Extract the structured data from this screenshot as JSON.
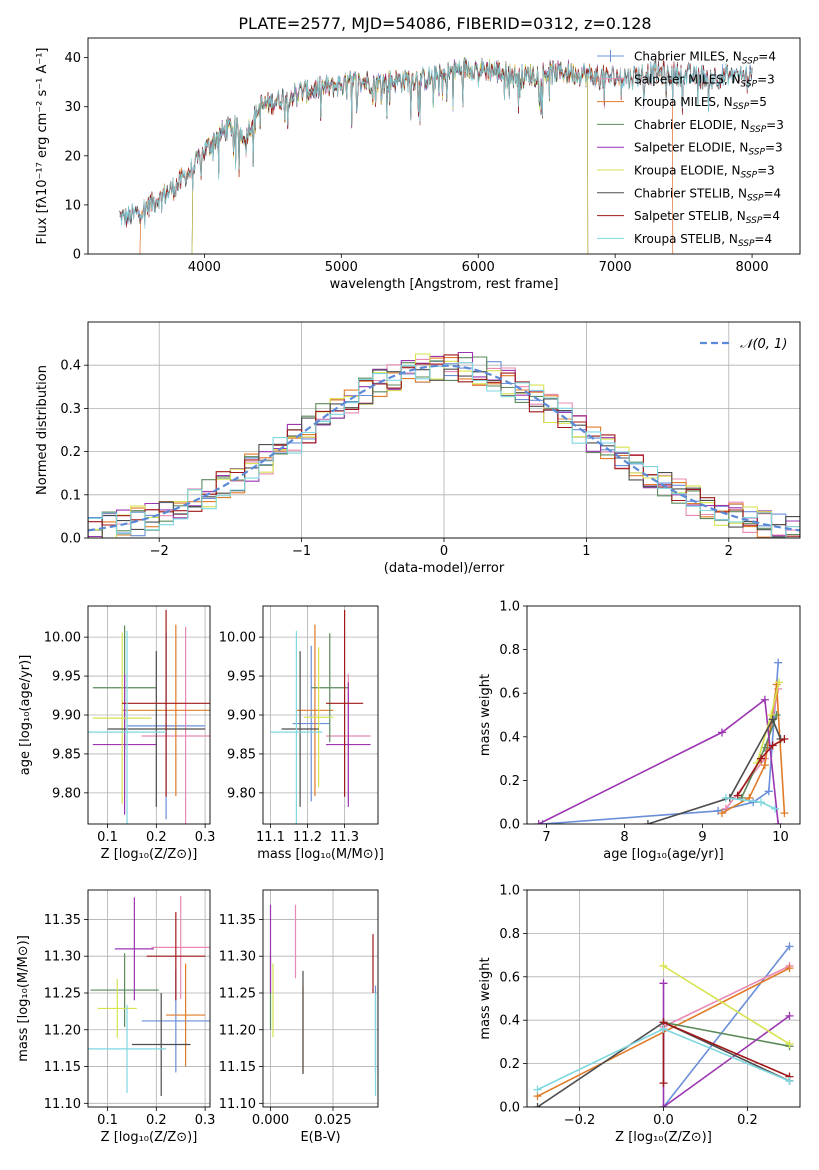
{
  "figure_title": "PLATE=2577, MJD=54086, FIBERID=0312, z=0.128",
  "colors": {
    "chabrier_miles": "#6a8fd8",
    "salpeter_miles": "#e889b3",
    "kroupa_miles": "#e07b28",
    "chabrier_elodie": "#5b8a5b",
    "salpeter_elodie": "#9b35b0",
    "kroupa_elodie": "#d6e34e",
    "chabrier_stelib": "#4d4d4d",
    "salpeter_stelib": "#a01818",
    "kroupa_stelib": "#7fd7e0",
    "gaussian": "#5b8ad8"
  },
  "chart_data": [
    {
      "id": "spectrum",
      "type": "line",
      "xlabel": "wavelength [Angstrom, rest frame]",
      "ylabel": "Flux [fλ10⁻¹⁷ erg cm⁻² s⁻¹ A⁻¹]",
      "xlim": [
        3150,
        8350
      ],
      "ylim": [
        0,
        44
      ],
      "xticks": [
        4000,
        5000,
        6000,
        7000,
        8000
      ],
      "yticks": [
        0,
        10,
        20,
        30,
        40
      ],
      "continuum": {
        "x": [
          3380,
          3450,
          3600,
          3700,
          3800,
          3900,
          4000,
          4100,
          4200,
          4300,
          4400,
          4500,
          4700,
          4900,
          5100,
          5300,
          5500,
          5700,
          5900,
          6100,
          6300,
          6500,
          6700,
          6900,
          7100,
          7300,
          7500,
          7700,
          7900,
          8000
        ],
        "y": [
          7.5,
          7.5,
          10,
          12,
          14,
          17,
          21,
          24,
          26,
          24,
          30,
          31,
          33,
          34,
          35,
          35,
          35.5,
          36,
          38,
          37.5,
          36,
          37,
          37,
          36,
          36,
          37,
          36.5,
          36,
          36.5,
          36
        ]
      },
      "cutoffs": [
        {
          "model": "salpeter_miles",
          "from": 3530,
          "to": 7420
        },
        {
          "model": "kroupa_miles",
          "from": 3530,
          "to": 7420
        },
        {
          "model": "kroupa_elodie",
          "from": 3910,
          "to": 6800
        },
        {
          "model": "chabrier_elodie",
          "from": 3910,
          "to": 6800
        },
        {
          "model": "salpeter_elodie",
          "from": 3910,
          "to": 6800
        }
      ],
      "legend_position": "upper right",
      "legend": [
        {
          "key": "chabrier_miles",
          "style": "plus",
          "label": "Chabrier MILES, N",
          "sub": "SSP",
          "eq": "=4"
        },
        {
          "key": "salpeter_miles",
          "style": "line",
          "label": "Salpeter MILES, N",
          "sub": "SSP",
          "eq": "=3"
        },
        {
          "key": "kroupa_miles",
          "style": "line",
          "label": "Kroupa MILES, N",
          "sub": "SSP",
          "eq": "=5"
        },
        {
          "key": "chabrier_elodie",
          "style": "line",
          "label": "Chabrier ELODIE, N",
          "sub": "SSP",
          "eq": "=3"
        },
        {
          "key": "salpeter_elodie",
          "style": "line",
          "label": "Salpeter ELODIE, N",
          "sub": "SSP",
          "eq": "=3"
        },
        {
          "key": "kroupa_elodie",
          "style": "line",
          "label": "Kroupa ELODIE, N",
          "sub": "SSP",
          "eq": "=3"
        },
        {
          "key": "chabrier_stelib",
          "style": "line",
          "label": "Chabrier STELIB, N",
          "sub": "SSP",
          "eq": "=4"
        },
        {
          "key": "salpeter_stelib",
          "style": "line",
          "label": "Salpeter STELIB, N",
          "sub": "SSP",
          "eq": "=4"
        },
        {
          "key": "kroupa_stelib",
          "style": "line",
          "label": "Kroupa STELIB, N",
          "sub": "SSP",
          "eq": "=4"
        }
      ]
    },
    {
      "id": "residuals",
      "type": "histogram",
      "xlabel": "(data-model)/error",
      "ylabel": "Normed distribution",
      "xlim": [
        -2.5,
        2.5
      ],
      "ylim": [
        0,
        0.5
      ],
      "xticks": [
        -2,
        -1,
        0,
        1,
        2
      ],
      "yticks": [
        0.0,
        0.1,
        0.2,
        0.3,
        0.4
      ],
      "grid": true,
      "bin_width": 0.1,
      "legend_label": "𝒩(0, 1)",
      "legend_position": "upper right"
    },
    {
      "id": "age_vs_Z",
      "type": "errorbar",
      "xlabel": "Z [log₁₀(Z/Z⊙)]",
      "ylabel": "age  [log₁₀(age/yr)]",
      "xlim": [
        0.06,
        0.31
      ],
      "ylim": [
        9.76,
        10.04
      ],
      "xticks": [
        0.1,
        0.2,
        0.3
      ],
      "yticks": [
        9.8,
        9.85,
        9.9,
        9.95,
        10.0
      ],
      "grid": true,
      "points": [
        {
          "key": "chabrier_miles",
          "x": 0.22,
          "y": 9.886,
          "xerr": 0.08,
          "yerr": 0.12
        },
        {
          "key": "salpeter_miles",
          "x": 0.26,
          "y": 9.873,
          "xerr": 0.09,
          "yerr": 0.14
        },
        {
          "key": "kroupa_miles",
          "x": 0.24,
          "y": 9.906,
          "xerr": 0.11,
          "yerr": 0.11
        },
        {
          "key": "chabrier_elodie",
          "x": 0.135,
          "y": 9.935,
          "xerr": 0.065,
          "yerr": 0.08
        },
        {
          "key": "salpeter_elodie",
          "x": 0.135,
          "y": 9.862,
          "xerr": 0.065,
          "yerr": 0.09
        },
        {
          "key": "kroupa_elodie",
          "x": 0.13,
          "y": 9.896,
          "xerr": 0.06,
          "yerr": 0.11
        },
        {
          "key": "chabrier_stelib",
          "x": 0.2,
          "y": 9.882,
          "xerr": 0.1,
          "yerr": 0.1
        },
        {
          "key": "salpeter_stelib",
          "x": 0.22,
          "y": 9.915,
          "xerr": 0.09,
          "yerr": 0.12
        },
        {
          "key": "kroupa_stelib",
          "x": 0.14,
          "y": 9.878,
          "xerr": 0.08,
          "yerr": 0.13
        }
      ]
    },
    {
      "id": "age_vs_mass",
      "type": "errorbar",
      "xlabel": "mass [log₁₀(M/M⊙)]",
      "ylabel": "",
      "xlim": [
        11.08,
        11.39
      ],
      "ylim": [
        9.76,
        10.04
      ],
      "xticks": [
        11.1,
        11.2,
        11.3
      ],
      "yticks": [
        9.8,
        9.85,
        9.9,
        9.95,
        10.0
      ],
      "grid": true,
      "points": [
        {
          "key": "chabrier_miles",
          "x": 11.21,
          "y": 9.889,
          "xerr": 0.05,
          "yerr": 0.1
        },
        {
          "key": "salpeter_miles",
          "x": 11.31,
          "y": 9.873,
          "xerr": 0.06,
          "yerr": 0.08
        },
        {
          "key": "kroupa_miles",
          "x": 11.22,
          "y": 9.906,
          "xerr": 0.05,
          "yerr": 0.11
        },
        {
          "key": "chabrier_elodie",
          "x": 11.26,
          "y": 9.935,
          "xerr": 0.05,
          "yerr": 0.07
        },
        {
          "key": "salpeter_elodie",
          "x": 11.31,
          "y": 9.862,
          "xerr": 0.06,
          "yerr": 0.08
        },
        {
          "key": "kroupa_elodie",
          "x": 11.23,
          "y": 9.897,
          "xerr": 0.04,
          "yerr": 0.09
        },
        {
          "key": "chabrier_stelib",
          "x": 11.18,
          "y": 9.882,
          "xerr": 0.05,
          "yerr": 0.1
        },
        {
          "key": "salpeter_stelib",
          "x": 11.3,
          "y": 9.915,
          "xerr": 0.05,
          "yerr": 0.12
        },
        {
          "key": "kroupa_stelib",
          "x": 11.17,
          "y": 9.878,
          "xerr": 0.07,
          "yerr": 0.13
        }
      ]
    },
    {
      "id": "weight_vs_age",
      "type": "line",
      "xlabel": "age  [log₁₀(age/yr)]",
      "ylabel": "mass weight",
      "xlim": [
        6.75,
        10.25
      ],
      "ylim": [
        0,
        1.0
      ],
      "xticks": [
        7,
        8,
        9,
        10
      ],
      "yticks": [
        0.0,
        0.2,
        0.4,
        0.6,
        0.8,
        1.0
      ],
      "grid": false,
      "series": [
        {
          "key": "chabrier_miles",
          "x": [
            6.95,
            9.2,
            9.65,
            9.85,
            9.97
          ],
          "y": [
            0.0,
            0.06,
            0.1,
            0.15,
            0.74
          ]
        },
        {
          "key": "salpeter_miles",
          "x": [
            9.3,
            9.8,
            9.97
          ],
          "y": [
            0.07,
            0.3,
            0.62
          ]
        },
        {
          "key": "kroupa_miles",
          "x": [
            9.25,
            9.6,
            9.8,
            9.95,
            10.05
          ],
          "y": [
            0.05,
            0.12,
            0.27,
            0.64,
            0.05
          ]
        },
        {
          "key": "chabrier_elodie",
          "x": [
            9.5,
            9.8,
            9.95
          ],
          "y": [
            0.12,
            0.35,
            0.5
          ]
        },
        {
          "key": "salpeter_elodie",
          "x": [
            6.9,
            9.25,
            9.8,
            9.97
          ],
          "y": [
            0.0,
            0.42,
            0.57,
            0.0
          ]
        },
        {
          "key": "kroupa_elodie",
          "x": [
            9.7,
            9.88,
            9.98
          ],
          "y": [
            0.28,
            0.5,
            0.65
          ]
        },
        {
          "key": "chabrier_stelib",
          "x": [
            8.3,
            9.35,
            9.9,
            10.0
          ],
          "y": [
            0.0,
            0.12,
            0.48,
            0.39
          ]
        },
        {
          "key": "salpeter_stelib",
          "x": [
            9.45,
            9.75,
            9.9,
            10.05
          ],
          "y": [
            0.13,
            0.3,
            0.36,
            0.39
          ]
        },
        {
          "key": "kroupa_stelib",
          "x": [
            9.3,
            9.75,
            9.93
          ],
          "y": [
            0.12,
            0.1,
            0.07
          ]
        }
      ]
    },
    {
      "id": "mass_vs_Z",
      "type": "errorbar",
      "xlabel": "Z [log₁₀(Z/Z⊙)]",
      "ylabel": "mass [log₁₀(M/M⊙)]",
      "xlim": [
        0.06,
        0.31
      ],
      "ylim": [
        11.095,
        11.39
      ],
      "xticks": [
        0.1,
        0.2,
        0.3
      ],
      "yticks": [
        11.1,
        11.15,
        11.2,
        11.25,
        11.3,
        11.35
      ],
      "grid": true,
      "points": [
        {
          "key": "chabrier_miles",
          "x": 0.24,
          "y": 11.212,
          "xerr": 0.07,
          "yerr": 0.07
        },
        {
          "key": "salpeter_miles",
          "x": 0.25,
          "y": 11.312,
          "xerr": 0.06,
          "yerr": 0.07
        },
        {
          "key": "kroupa_miles",
          "x": 0.26,
          "y": 11.22,
          "xerr": 0.04,
          "yerr": 0.07
        },
        {
          "key": "chabrier_elodie",
          "x": 0.135,
          "y": 11.254,
          "xerr": 0.07,
          "yerr": 0.05
        },
        {
          "key": "salpeter_elodie",
          "x": 0.155,
          "y": 11.31,
          "xerr": 0.04,
          "yerr": 0.07
        },
        {
          "key": "kroupa_elodie",
          "x": 0.12,
          "y": 11.229,
          "xerr": 0.04,
          "yerr": 0.04
        },
        {
          "key": "chabrier_stelib",
          "x": 0.21,
          "y": 11.18,
          "xerr": 0.06,
          "yerr": 0.07
        },
        {
          "key": "salpeter_stelib",
          "x": 0.24,
          "y": 11.3,
          "xerr": 0.06,
          "yerr": 0.06
        },
        {
          "key": "kroupa_stelib",
          "x": 0.14,
          "y": 11.174,
          "xerr": 0.08,
          "yerr": 0.06
        }
      ]
    },
    {
      "id": "mass_vs_EBV",
      "type": "errorbar",
      "xlabel": "E(B-V)",
      "ylabel": "",
      "xlim": [
        -0.003,
        0.043
      ],
      "ylim": [
        11.095,
        11.39
      ],
      "xticks": [
        0.0,
        0.025
      ],
      "yticks": [
        11.1,
        11.15,
        11.2,
        11.25,
        11.3,
        11.35
      ],
      "grid": true,
      "points": [
        {
          "key": "chabrier_miles",
          "x": 0.042,
          "y": 11.2,
          "xerr": 0,
          "yerr": 0.06
        },
        {
          "key": "salpeter_miles",
          "x": 0.01,
          "y": 11.32,
          "xerr": 0,
          "yerr": 0.05
        },
        {
          "key": "kroupa_miles",
          "x": 0.013,
          "y": 11.2,
          "xerr": 0,
          "yerr": 0.06
        },
        {
          "key": "chabrier_elodie",
          "x": 0.0,
          "y": 11.25,
          "xerr": 0,
          "yerr": 0.05
        },
        {
          "key": "salpeter_elodie",
          "x": 0.0,
          "y": 11.31,
          "xerr": 0,
          "yerr": 0.06
        },
        {
          "key": "kroupa_elodie",
          "x": 0.001,
          "y": 11.24,
          "xerr": 0,
          "yerr": 0.05
        },
        {
          "key": "chabrier_stelib",
          "x": 0.013,
          "y": 11.21,
          "xerr": 0,
          "yerr": 0.07
        },
        {
          "key": "salpeter_stelib",
          "x": 0.041,
          "y": 11.29,
          "xerr": 0,
          "yerr": 0.04
        },
        {
          "key": "kroupa_stelib",
          "x": 0.042,
          "y": 11.18,
          "xerr": 0,
          "yerr": 0.07
        }
      ]
    },
    {
      "id": "weight_vs_Z",
      "type": "line",
      "xlabel": "Z [log₁₀(Z/Z⊙)]",
      "ylabel": "mass weight",
      "xlim": [
        -0.325,
        0.325
      ],
      "ylim": [
        0,
        1.0
      ],
      "xticks": [
        -0.2,
        0.0,
        0.2
      ],
      "yticks": [
        0.0,
        0.2,
        0.4,
        0.6,
        0.8,
        1.0
      ],
      "grid": true,
      "series": [
        {
          "key": "chabrier_miles",
          "x": [
            0.0,
            0.3
          ],
          "y": [
            0.0,
            0.74
          ]
        },
        {
          "key": "salpeter_miles",
          "x": [
            0.0,
            0.3
          ],
          "y": [
            0.37,
            0.65
          ]
        },
        {
          "key": "kroupa_miles",
          "x": [
            -0.3,
            0.3
          ],
          "y": [
            0.05,
            0.64
          ]
        },
        {
          "key": "chabrier_elodie",
          "x": [
            0.0,
            0.3
          ],
          "y": [
            0.39,
            0.28
          ]
        },
        {
          "key": "salpeter_elodie",
          "x": [
            0.0,
            0.0,
            0.3
          ],
          "y": [
            0.57,
            0.0,
            0.42
          ]
        },
        {
          "key": "kroupa_elodie",
          "x": [
            0.0,
            0.3
          ],
          "y": [
            0.65,
            0.29
          ]
        },
        {
          "key": "chabrier_stelib",
          "x": [
            -0.3,
            0.0,
            0.3
          ],
          "y": [
            0.0,
            0.39,
            0.12
          ]
        },
        {
          "key": "salpeter_stelib",
          "x": [
            0.0,
            0.0,
            0.3
          ],
          "y": [
            0.11,
            0.39,
            0.14
          ]
        },
        {
          "key": "kroupa_stelib",
          "x": [
            -0.3,
            0.0,
            0.3
          ],
          "y": [
            0.08,
            0.36,
            0.12
          ]
        }
      ]
    }
  ]
}
